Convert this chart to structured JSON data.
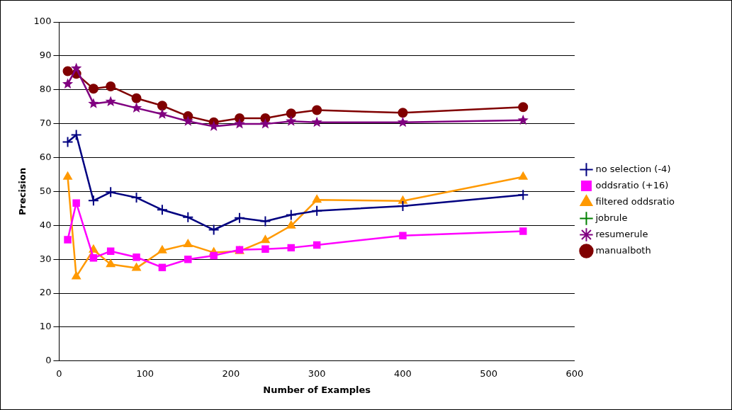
{
  "chart_data": {
    "type": "line",
    "xlabel": "Number of Examples",
    "ylabel": "Precision",
    "x": [
      10,
      20,
      40,
      60,
      90,
      120,
      150,
      180,
      210,
      240,
      270,
      300,
      400,
      540
    ],
    "xlim": [
      0,
      600
    ],
    "xticks": [
      0,
      100,
      200,
      300,
      400,
      500,
      600
    ],
    "ylim": [
      0,
      100
    ],
    "yticks": [
      0,
      10,
      20,
      30,
      40,
      50,
      60,
      70,
      80,
      90,
      100
    ],
    "grid": "y",
    "legend": "right",
    "series": [
      {
        "name": "no selection (-4)",
        "color": "#000080",
        "marker": "cross",
        "values": [
          64.6,
          66.7,
          47.3,
          49.8,
          48.2,
          44.6,
          42.4,
          38.7,
          42.2,
          41.2,
          43.1,
          44.3,
          45.7,
          49.0
        ]
      },
      {
        "name": "oddsratio (+16)",
        "color": "#ff00ff",
        "marker": "square",
        "values": [
          35.8,
          46.6,
          30.4,
          32.4,
          30.6,
          27.6,
          30.0,
          31.1,
          32.8,
          33.0,
          33.4,
          34.2,
          37.0,
          38.3
        ]
      },
      {
        "name": "filtered oddsratio",
        "color": "#ff9900",
        "marker": "triangle",
        "values": [
          54.3,
          24.9,
          32.8,
          28.5,
          27.4,
          32.6,
          34.4,
          32.0,
          32.4,
          35.6,
          39.9,
          47.5,
          47.2,
          54.3
        ]
      },
      {
        "name": "jobrule",
        "color": "#008000",
        "marker": "cross",
        "values": [
          null,
          null,
          null,
          null,
          null,
          null,
          null,
          null,
          null,
          null,
          null,
          null,
          null,
          null
        ]
      },
      {
        "name": "resumerule",
        "color": "#800080",
        "marker": "star",
        "values": [
          81.7,
          86.3,
          75.9,
          76.5,
          74.6,
          72.8,
          70.7,
          69.2,
          69.9,
          69.9,
          70.7,
          70.4,
          70.4,
          71.0
        ]
      },
      {
        "name": "manualboth",
        "color": "#800000",
        "marker": "circle",
        "values": [
          85.5,
          84.7,
          80.3,
          81.0,
          77.5,
          75.3,
          72.2,
          70.4,
          71.6,
          71.6,
          73.0,
          74.0,
          73.2,
          74.9
        ]
      }
    ]
  }
}
